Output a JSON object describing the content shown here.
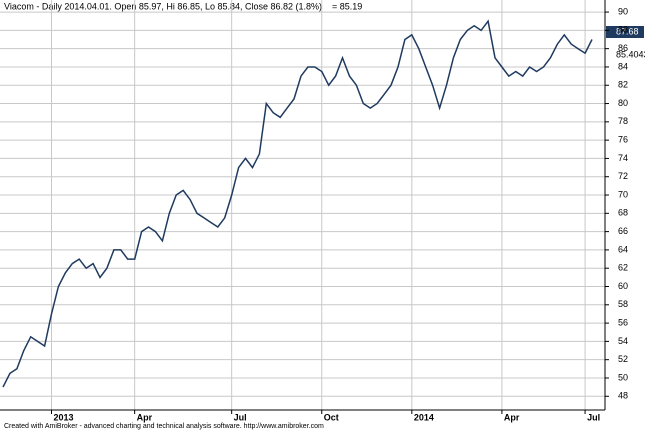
{
  "chart_data": {
    "type": "line",
    "title": "Viacom - Daily 2014.04.01. Open 85.97, Hi 86.85, Lo 85.84, Close 86.82 (1.8%)",
    "subtitle": "= 85.19",
    "footer": "Created with AmiBroker - advanced charting and technical analysis software. http://www.amibroker.com",
    "annotations": [
      "87.68",
      "85.4043"
    ],
    "categories": [
      null,
      null,
      null,
      null,
      null,
      null,
      null,
      "2013",
      null,
      null,
      null,
      null,
      null,
      null,
      null,
      null,
      null,
      null,
      null,
      "Apr",
      null,
      null,
      null,
      null,
      null,
      null,
      null,
      null,
      null,
      null,
      null,
      null,
      null,
      "Jul",
      null,
      null,
      null,
      null,
      null,
      null,
      null,
      null,
      null,
      null,
      null,
      null,
      "Oct",
      null,
      null,
      null,
      null,
      null,
      null,
      null,
      null,
      null,
      null,
      null,
      null,
      "2014",
      null,
      null,
      null,
      null,
      null,
      null,
      null,
      null,
      null,
      null,
      null,
      null,
      "Apr",
      null,
      null,
      null,
      null,
      null,
      null,
      null,
      null,
      null,
      null,
      null,
      "Jul",
      null
    ],
    "series": [
      {
        "name": "Viacom",
        "color": "#1f3a5f",
        "values": [
          49,
          50.5,
          51,
          53,
          54.5,
          54,
          53.5,
          57,
          60,
          61.5,
          62.5,
          63,
          62,
          62.5,
          61,
          62,
          64,
          64,
          63,
          63,
          66,
          66.5,
          66,
          65,
          68,
          70,
          70.5,
          69.5,
          68,
          67.5,
          67,
          66.5,
          67.5,
          70,
          73,
          74,
          73,
          74.5,
          80,
          79,
          78.5,
          79.5,
          80.5,
          83,
          84,
          84,
          83.5,
          82,
          83,
          85,
          83,
          82,
          80,
          79.5,
          80,
          81,
          82,
          84,
          87,
          87.5,
          86,
          84,
          82,
          79.5,
          82,
          85,
          87,
          88,
          88.5,
          88,
          89,
          85,
          84,
          83,
          83.5,
          83,
          84,
          83.5,
          84,
          85,
          86.5,
          87.5,
          86.5,
          86,
          85.5,
          87
        ]
      }
    ],
    "ylim": [
      46.5,
      91.1
    ],
    "yticks": [
      48,
      50,
      52,
      54,
      56,
      58,
      60,
      62,
      64,
      66,
      68,
      70,
      72,
      74,
      76,
      78,
      80,
      82,
      84,
      86,
      88,
      90
    ],
    "grid": true
  }
}
